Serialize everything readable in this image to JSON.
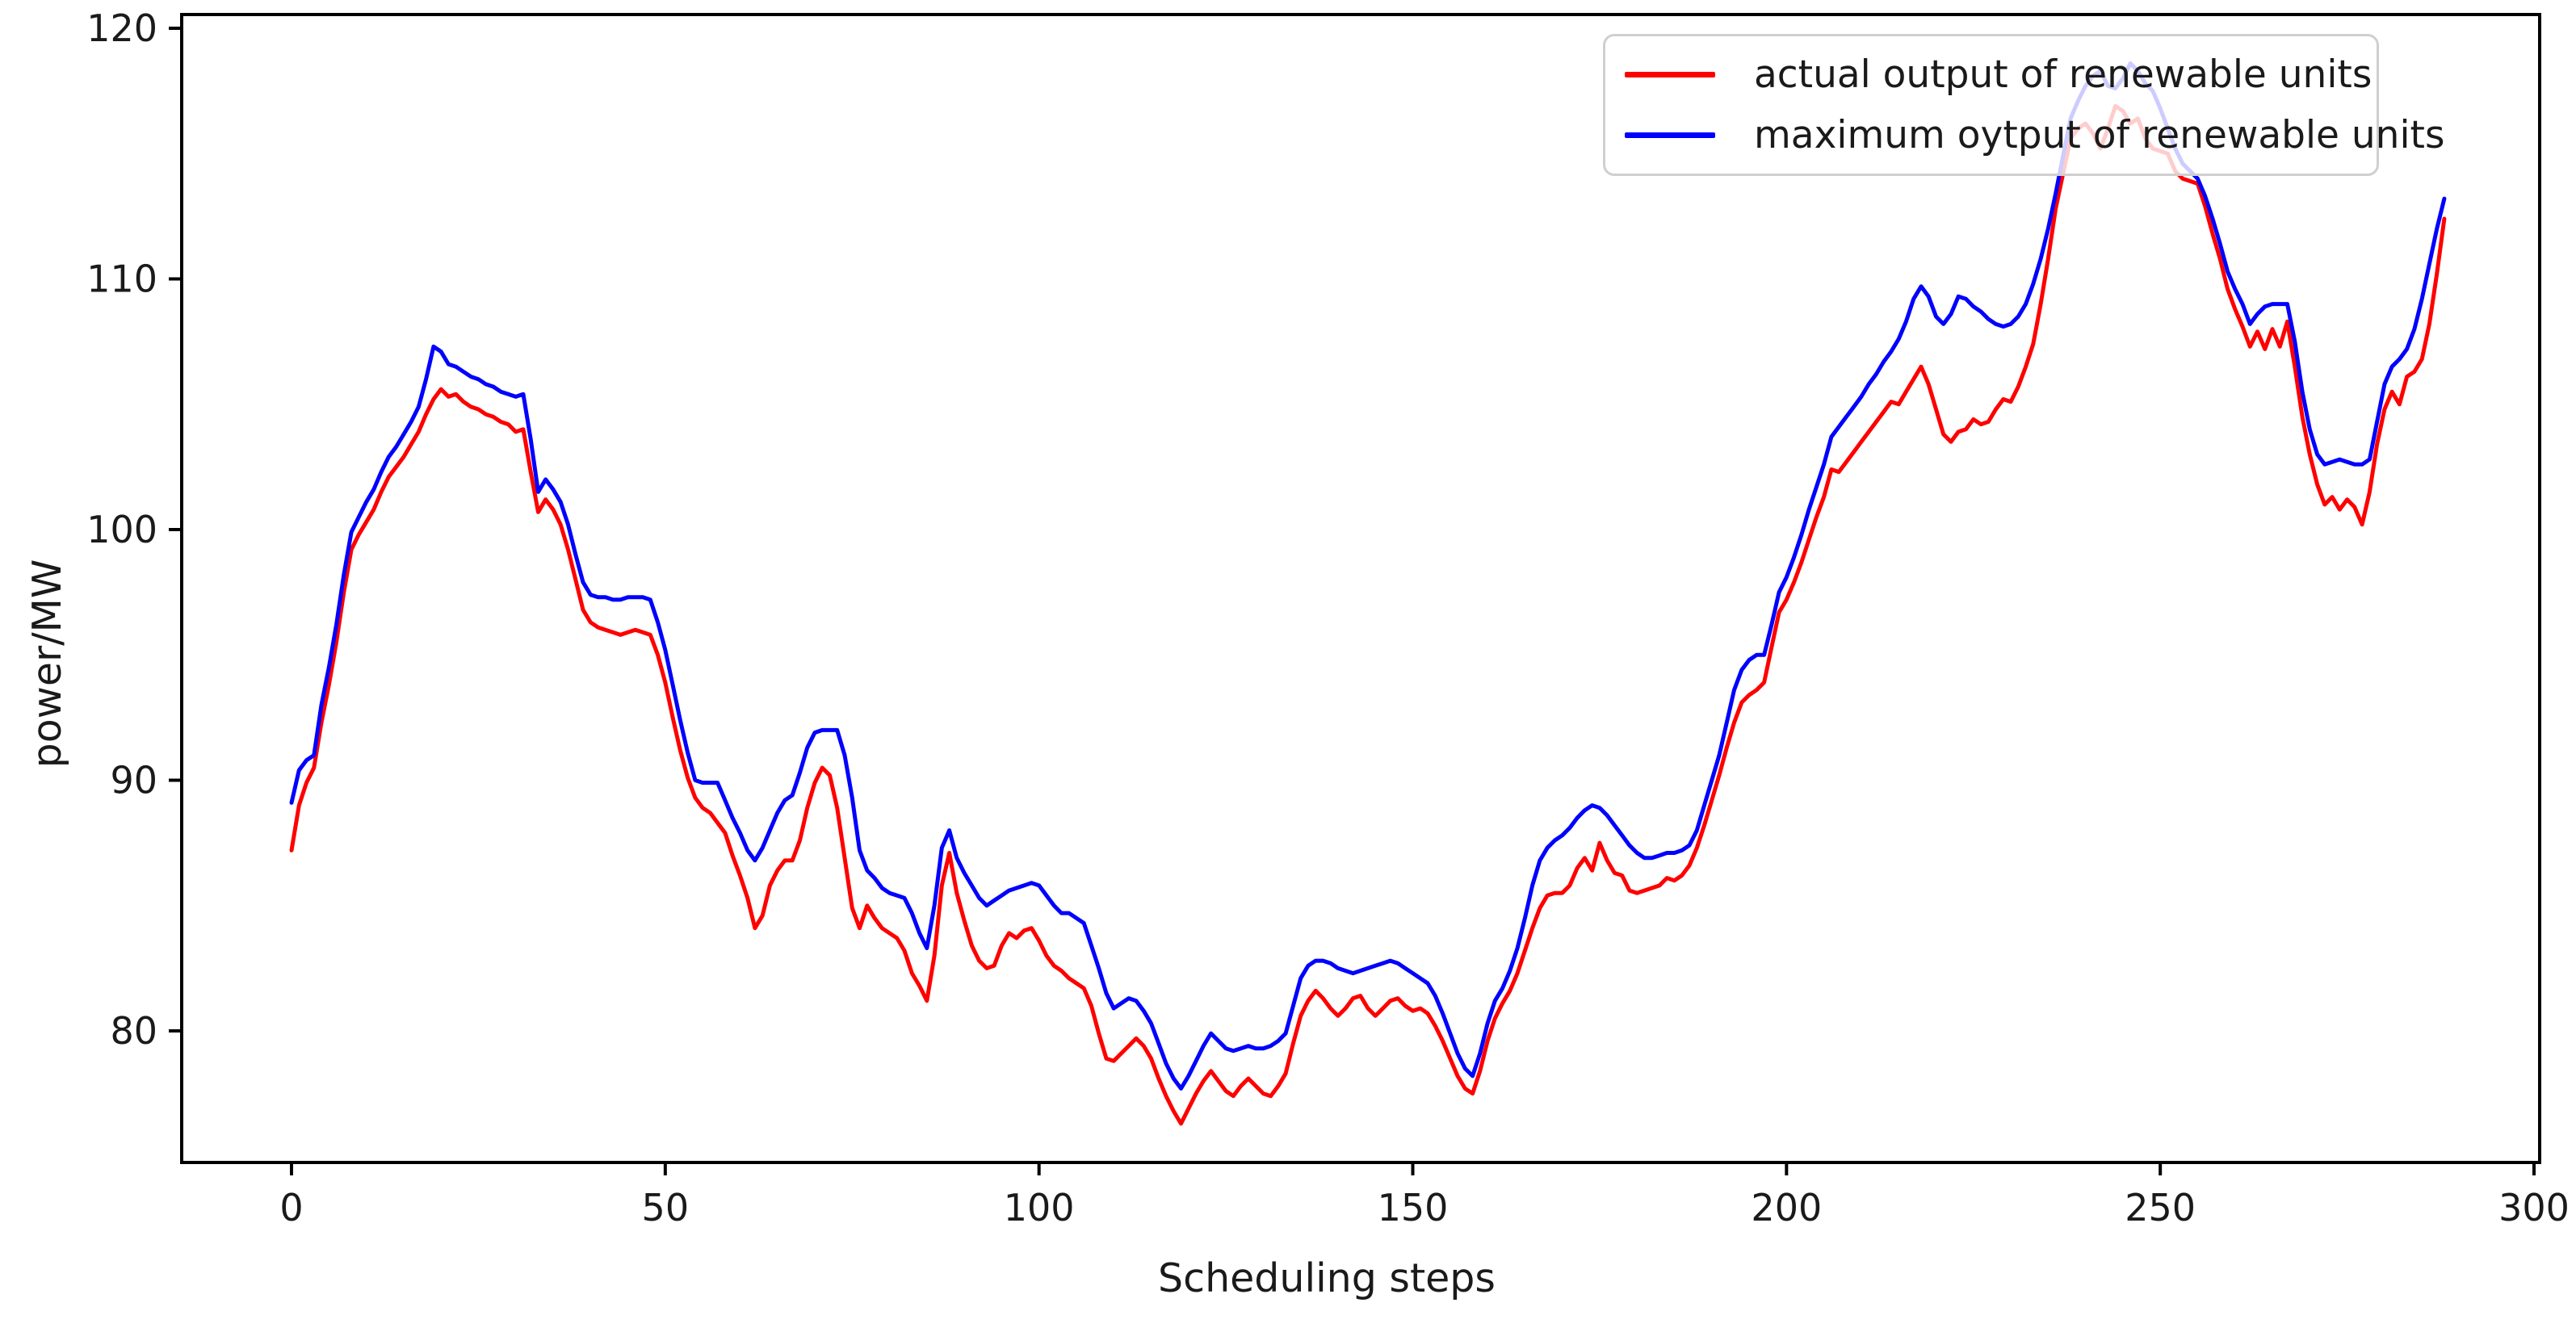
{
  "figure": {
    "background_color": "#ffffff",
    "spine_color": "#000000"
  },
  "axes": {
    "xlabel": "Scheduling steps",
    "ylabel": "power/MW",
    "x_tick_labels": [
      "0",
      "50",
      "100",
      "150",
      "200",
      "250",
      "300"
    ],
    "x_tick_values": [
      0,
      50,
      100,
      150,
      200,
      250,
      300
    ],
    "y_tick_labels": [
      "80",
      "90",
      "100",
      "110",
      "120"
    ],
    "y_tick_values": [
      80,
      90,
      100,
      110,
      120
    ],
    "xlim": [
      -14.7,
      300.8
    ],
    "ylim": [
      74.75,
      120.55
    ],
    "grid": false
  },
  "legend": {
    "position": "upper right",
    "items": [
      {
        "label": "actual output of renewable units",
        "color": "#ff0000",
        "name": "actual-output-series"
      },
      {
        "label": "maximum oytput of renewable units",
        "color": "#0000ff",
        "name": "maximum-output-series"
      }
    ]
  },
  "chart_data": {
    "type": "line",
    "title": "",
    "xlabel": "Scheduling steps",
    "ylabel": "power/MW",
    "x_start": 0,
    "x_increment": 1,
    "legend_position": "upper right",
    "series": [
      {
        "name": "actual output of renewable units",
        "color": "#ff0000",
        "line_width": 5,
        "values": [
          87.2,
          89.0,
          89.9,
          90.5,
          92.3,
          93.8,
          95.5,
          97.5,
          99.2,
          99.8,
          100.3,
          100.8,
          101.5,
          102.1,
          102.5,
          102.9,
          103.4,
          103.9,
          104.6,
          105.2,
          105.6,
          105.3,
          105.4,
          105.1,
          104.9,
          104.8,
          104.6,
          104.5,
          104.3,
          104.2,
          103.9,
          104.0,
          102.3,
          100.7,
          101.2,
          100.8,
          100.2,
          99.2,
          98.0,
          96.8,
          96.3,
          96.1,
          96.0,
          95.9,
          95.8,
          95.9,
          96.0,
          95.9,
          95.8,
          95.0,
          93.9,
          92.5,
          91.2,
          90.1,
          89.3,
          88.9,
          88.7,
          88.3,
          87.9,
          87.0,
          86.2,
          85.3,
          84.1,
          84.6,
          85.8,
          86.4,
          86.8,
          86.8,
          87.6,
          88.9,
          89.9,
          90.5,
          90.2,
          88.9,
          86.9,
          84.9,
          84.1,
          85.0,
          84.5,
          84.1,
          83.9,
          83.7,
          83.2,
          82.3,
          81.8,
          81.2,
          83.0,
          85.8,
          87.1,
          85.5,
          84.4,
          83.4,
          82.8,
          82.5,
          82.6,
          83.4,
          83.9,
          83.7,
          84.0,
          84.1,
          83.6,
          83.0,
          82.6,
          82.4,
          82.1,
          81.9,
          81.7,
          81.0,
          79.9,
          78.9,
          78.8,
          79.1,
          79.4,
          79.7,
          79.4,
          78.9,
          78.1,
          77.4,
          76.8,
          76.3,
          76.9,
          77.5,
          78.0,
          78.4,
          78.0,
          77.6,
          77.4,
          77.8,
          78.1,
          77.8,
          77.5,
          77.4,
          77.8,
          78.3,
          79.5,
          80.6,
          81.2,
          81.6,
          81.3,
          80.9,
          80.6,
          80.9,
          81.3,
          81.4,
          80.9,
          80.6,
          80.9,
          81.2,
          81.3,
          81.0,
          80.8,
          80.9,
          80.7,
          80.2,
          79.6,
          78.9,
          78.2,
          77.7,
          77.5,
          78.4,
          79.6,
          80.5,
          81.1,
          81.6,
          82.3,
          83.2,
          84.1,
          84.9,
          85.4,
          85.5,
          85.5,
          85.8,
          86.5,
          86.9,
          86.4,
          87.5,
          86.8,
          86.3,
          86.2,
          85.6,
          85.5,
          85.6,
          85.7,
          85.8,
          86.1,
          86.0,
          86.2,
          86.6,
          87.3,
          88.2,
          89.2,
          90.2,
          91.3,
          92.3,
          93.1,
          93.4,
          93.6,
          93.9,
          95.3,
          96.7,
          97.2,
          97.9,
          98.7,
          99.6,
          100.5,
          101.3,
          102.4,
          102.3,
          102.7,
          103.1,
          103.5,
          103.9,
          104.3,
          104.7,
          105.1,
          105.0,
          105.5,
          106.0,
          106.5,
          105.8,
          104.8,
          103.8,
          103.5,
          103.9,
          104.0,
          104.4,
          104.2,
          104.3,
          104.8,
          105.2,
          105.1,
          105.7,
          106.5,
          107.4,
          109.0,
          110.8,
          112.8,
          114.2,
          115.6,
          116.0,
          116.2,
          115.8,
          115.2,
          116.0,
          116.9,
          116.7,
          116.2,
          116.4,
          115.6,
          115.2,
          115.1,
          115.0,
          114.3,
          114.0,
          113.9,
          113.8,
          112.9,
          111.8,
          110.8,
          109.6,
          108.8,
          108.1,
          107.3,
          107.9,
          107.2,
          108.0,
          107.3,
          108.3,
          106.5,
          104.5,
          103.0,
          101.8,
          101.0,
          101.3,
          100.8,
          101.2,
          100.9,
          100.2,
          101.5,
          103.4,
          104.8,
          105.5,
          105.0,
          106.1,
          106.3,
          106.8,
          108.2,
          110.2,
          112.4
        ]
      },
      {
        "name": "maximum oytput of renewable units",
        "color": "#0000ff",
        "line_width": 5,
        "values": [
          89.1,
          90.4,
          90.8,
          91.0,
          93.0,
          94.5,
          96.2,
          98.2,
          99.9,
          100.5,
          101.1,
          101.6,
          102.3,
          102.9,
          103.3,
          103.8,
          104.3,
          104.9,
          106.0,
          107.3,
          107.1,
          106.6,
          106.5,
          106.3,
          106.1,
          106.0,
          105.8,
          105.7,
          105.5,
          105.4,
          105.3,
          105.4,
          103.6,
          101.5,
          102.0,
          101.6,
          101.1,
          100.2,
          99.0,
          97.9,
          97.4,
          97.3,
          97.3,
          97.2,
          97.2,
          97.3,
          97.3,
          97.3,
          97.2,
          96.3,
          95.2,
          93.8,
          92.4,
          91.1,
          90.0,
          89.9,
          89.9,
          89.9,
          89.2,
          88.5,
          87.9,
          87.2,
          86.8,
          87.3,
          88.0,
          88.7,
          89.2,
          89.4,
          90.3,
          91.3,
          91.9,
          92.0,
          92.0,
          92.0,
          91.0,
          89.3,
          87.2,
          86.4,
          86.1,
          85.7,
          85.5,
          85.4,
          85.3,
          84.7,
          83.9,
          83.3,
          85.0,
          87.3,
          88.0,
          86.9,
          86.3,
          85.8,
          85.3,
          85.0,
          85.2,
          85.4,
          85.6,
          85.7,
          85.8,
          85.9,
          85.8,
          85.4,
          85.0,
          84.7,
          84.7,
          84.5,
          84.3,
          83.4,
          82.5,
          81.5,
          80.9,
          81.1,
          81.3,
          81.2,
          80.8,
          80.3,
          79.5,
          78.7,
          78.1,
          77.7,
          78.2,
          78.8,
          79.4,
          79.9,
          79.6,
          79.3,
          79.2,
          79.3,
          79.4,
          79.3,
          79.3,
          79.4,
          79.6,
          79.9,
          81.0,
          82.1,
          82.6,
          82.8,
          82.8,
          82.7,
          82.5,
          82.4,
          82.3,
          82.4,
          82.5,
          82.6,
          82.7,
          82.8,
          82.7,
          82.5,
          82.3,
          82.1,
          81.9,
          81.4,
          80.7,
          79.9,
          79.1,
          78.5,
          78.2,
          79.1,
          80.3,
          81.2,
          81.7,
          82.4,
          83.3,
          84.5,
          85.8,
          86.8,
          87.3,
          87.6,
          87.8,
          88.1,
          88.5,
          88.8,
          89.0,
          88.9,
          88.6,
          88.2,
          87.8,
          87.4,
          87.1,
          86.9,
          86.9,
          87.0,
          87.1,
          87.1,
          87.2,
          87.4,
          88.0,
          89.0,
          90.0,
          91.0,
          92.3,
          93.6,
          94.4,
          94.8,
          95.0,
          95.0,
          96.2,
          97.5,
          98.1,
          98.9,
          99.8,
          100.8,
          101.7,
          102.6,
          103.7,
          104.1,
          104.5,
          104.9,
          105.3,
          105.8,
          106.2,
          106.7,
          107.1,
          107.6,
          108.3,
          109.2,
          109.7,
          109.3,
          108.5,
          108.2,
          108.6,
          109.3,
          109.2,
          108.9,
          108.7,
          108.4,
          108.2,
          108.1,
          108.2,
          108.5,
          109.0,
          109.8,
          110.8,
          112.0,
          113.4,
          114.9,
          116.4,
          117.1,
          117.7,
          118.1,
          118.3,
          117.7,
          117.6,
          118.0,
          118.6,
          118.3,
          117.8,
          117.5,
          116.8,
          116.0,
          115.2,
          114.6,
          114.3,
          114.0,
          113.3,
          112.4,
          111.4,
          110.3,
          109.6,
          109.0,
          108.2,
          108.6,
          108.9,
          109.0,
          109.0,
          109.0,
          107.5,
          105.5,
          104.0,
          103.0,
          102.6,
          102.7,
          102.8,
          102.7,
          102.6,
          102.6,
          102.8,
          104.3,
          105.8,
          106.5,
          106.8,
          107.2,
          108.0,
          109.2,
          110.6,
          112.0,
          113.2
        ]
      }
    ]
  }
}
